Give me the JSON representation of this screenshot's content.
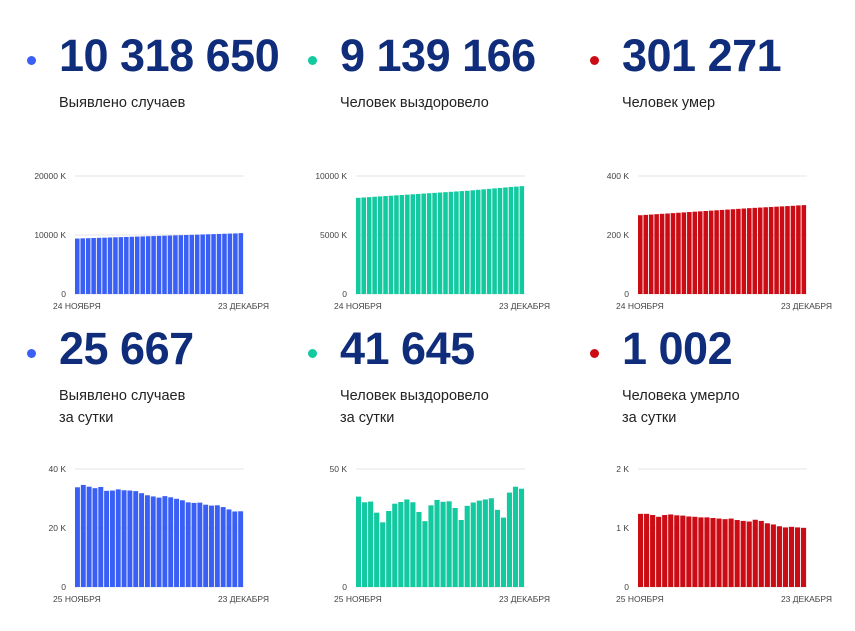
{
  "colors": {
    "blue": "#3a5ff5",
    "green": "#12c9a0",
    "red": "#cc0c14",
    "number": "#0f2d7a"
  },
  "panels": [
    {
      "id": "cases-total",
      "color": "#3a5ff5",
      "number": "10 318 650",
      "label_lines": [
        "Выявлено случаев"
      ]
    },
    {
      "id": "recovered-total",
      "color": "#12c9a0",
      "number": "9 139 166",
      "label_lines": [
        "Человек выздоровело"
      ]
    },
    {
      "id": "deaths-total",
      "color": "#cc0c14",
      "number": "301 271",
      "label_lines": [
        "Человек умер"
      ]
    },
    {
      "id": "cases-daily",
      "color": "#3a5ff5",
      "number": "25 667",
      "label_lines": [
        "Выявлено случаев",
        "за сутки"
      ]
    },
    {
      "id": "recovered-daily",
      "color": "#12c9a0",
      "number": "41 645",
      "label_lines": [
        "Человек выздоровело",
        "за сутки"
      ]
    },
    {
      "id": "deaths-daily",
      "color": "#cc0c14",
      "number": "1 002",
      "label_lines": [
        "Человека умерло",
        "за сутки"
      ]
    }
  ],
  "chart_data": [
    {
      "type": "bar",
      "panel": "cases-total",
      "ytick_labels": [
        "20000 K",
        "10000 K",
        "0"
      ],
      "ytick_values": [
        20000000,
        10000000,
        0
      ],
      "ylim": [
        0,
        20000000
      ],
      "x_start": "24 НОЯБРЯ",
      "x_end": "23 ДЕКАБРЯ",
      "grid": true,
      "values": [
        9400000,
        9430000,
        9460000,
        9490000,
        9520000,
        9550000,
        9580000,
        9610000,
        9640000,
        9670000,
        9700000,
        9730000,
        9760000,
        9790000,
        9820000,
        9850000,
        9880000,
        9910000,
        9940000,
        9970000,
        10000000,
        10030000,
        10060000,
        10090000,
        10120000,
        10150000,
        10180000,
        10210000,
        10240000,
        10270000,
        10318650
      ]
    },
    {
      "type": "bar",
      "panel": "recovered-total",
      "ytick_labels": [
        "10000 K",
        "5000 K",
        "0"
      ],
      "ytick_values": [
        10000000,
        5000000,
        0
      ],
      "ylim": [
        0,
        10000000
      ],
      "x_start": "24 НОЯБРЯ",
      "x_end": "23 ДЕКАБРЯ",
      "grid": true,
      "values": [
        8150000,
        8180000,
        8210000,
        8240000,
        8270000,
        8300000,
        8330000,
        8360000,
        8390000,
        8420000,
        8450000,
        8480000,
        8510000,
        8540000,
        8570000,
        8600000,
        8630000,
        8660000,
        8690000,
        8720000,
        8750000,
        8790000,
        8830000,
        8870000,
        8910000,
        8950000,
        8990000,
        9030000,
        9070000,
        9100000,
        9139166
      ]
    },
    {
      "type": "bar",
      "panel": "deaths-total",
      "ytick_labels": [
        "400 K",
        "200 K",
        "0"
      ],
      "ytick_values": [
        400000,
        200000,
        0
      ],
      "ylim": [
        0,
        400000
      ],
      "x_start": "24 НОЯБРЯ",
      "x_end": "23 ДЕКАБРЯ",
      "grid": true,
      "values": [
        267000,
        268200,
        269400,
        270600,
        271800,
        273000,
        274200,
        275400,
        276600,
        277800,
        279000,
        280200,
        281400,
        282600,
        283800,
        285000,
        286200,
        287400,
        288600,
        289800,
        291000,
        292000,
        293000,
        294000,
        295000,
        296000,
        297000,
        298000,
        299000,
        300300,
        301271
      ]
    },
    {
      "type": "bar",
      "panel": "cases-daily",
      "ytick_labels": [
        "40 K",
        "20 K",
        "0"
      ],
      "ytick_values": [
        40000,
        20000,
        0
      ],
      "ylim": [
        0,
        40000
      ],
      "x_start": "25 НОЯБРЯ",
      "x_end": "23 ДЕКАБРЯ",
      "grid": true,
      "values": [
        33800,
        34600,
        34000,
        33500,
        33900,
        32600,
        32700,
        33100,
        32800,
        32700,
        32500,
        31800,
        31100,
        30700,
        30300,
        30800,
        30400,
        29900,
        29400,
        28700,
        28500,
        28600,
        27900,
        27600,
        27700,
        27100,
        26300,
        25600,
        25667
      ]
    },
    {
      "type": "bar",
      "panel": "recovered-daily",
      "ytick_labels": [
        "50 K",
        "0"
      ],
      "ytick_values": [
        50000,
        0
      ],
      "ylim": [
        0,
        50000
      ],
      "x_start": "25 НОЯБРЯ",
      "x_end": "23 ДЕКАБРЯ",
      "grid": true,
      "values": [
        38300,
        35900,
        36200,
        31500,
        27400,
        32200,
        35300,
        36000,
        37100,
        35900,
        31800,
        27900,
        34600,
        36900,
        36100,
        36300,
        33500,
        28400,
        34400,
        35800,
        36600,
        37100,
        37600,
        32700,
        29400,
        40000,
        42500,
        41645
      ]
    },
    {
      "type": "bar",
      "panel": "deaths-daily",
      "ytick_labels": [
        "2 K",
        "1 K",
        "0"
      ],
      "ytick_values": [
        2000,
        1000,
        0
      ],
      "ylim": [
        0,
        2000
      ],
      "x_start": "25 НОЯБРЯ",
      "x_end": "23 ДЕКАБРЯ",
      "grid": true,
      "values": [
        1240,
        1240,
        1220,
        1190,
        1220,
        1230,
        1215,
        1210,
        1195,
        1190,
        1180,
        1180,
        1170,
        1160,
        1150,
        1160,
        1135,
        1120,
        1110,
        1140,
        1120,
        1080,
        1060,
        1030,
        1010,
        1020,
        1010,
        1002
      ]
    }
  ]
}
